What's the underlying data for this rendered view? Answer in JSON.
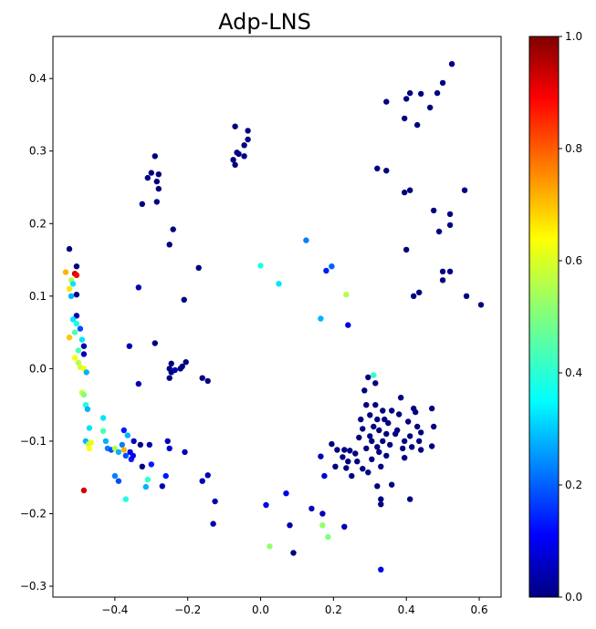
{
  "chart_data": {
    "type": "scatter",
    "title": "Adp-LNS",
    "xlabel": "",
    "ylabel": "",
    "xlim": [
      -0.57,
      0.66
    ],
    "ylim": [
      -0.315,
      0.458
    ],
    "xticks": [
      -0.4,
      -0.2,
      0.0,
      0.2,
      0.4,
      0.6
    ],
    "xtick_labels": [
      "−0.4",
      "−0.2",
      "0.0",
      "0.2",
      "0.4",
      "0.6"
    ],
    "yticks": [
      -0.3,
      -0.2,
      -0.1,
      0.0,
      0.1,
      0.2,
      0.3,
      0.4
    ],
    "ytick_labels": [
      "−0.3",
      "−0.2",
      "−0.1",
      "0.0",
      "0.1",
      "0.2",
      "0.3",
      "0.4"
    ],
    "colormap": "jet",
    "colorbar": {
      "range": [
        0.0,
        1.0
      ],
      "ticks": [
        0.0,
        0.2,
        0.4,
        0.6,
        0.8,
        1.0
      ],
      "tick_labels": [
        "0.0",
        "0.2",
        "0.4",
        "0.6",
        "0.8",
        "1.0"
      ]
    },
    "grid": false,
    "points": [
      [
        -0.51,
        0.131,
        0.92
      ],
      [
        -0.535,
        0.133,
        0.7
      ],
      [
        -0.525,
        0.165,
        0.0
      ],
      [
        -0.505,
        0.141,
        0.0
      ],
      [
        -0.52,
        0.122,
        0.55
      ],
      [
        -0.515,
        0.117,
        0.35
      ],
      [
        -0.525,
        0.11,
        0.65
      ],
      [
        -0.505,
        0.102,
        0.0
      ],
      [
        -0.52,
        0.1,
        0.3
      ],
      [
        -0.505,
        0.073,
        0.05
      ],
      [
        -0.515,
        0.068,
        0.35
      ],
      [
        -0.505,
        0.062,
        0.4
      ],
      [
        -0.495,
        0.055,
        0.2
      ],
      [
        -0.51,
        0.05,
        0.45
      ],
      [
        -0.525,
        0.043,
        0.68
      ],
      [
        -0.49,
        0.04,
        0.35
      ],
      [
        -0.485,
        0.031,
        0.05
      ],
      [
        -0.5,
        0.025,
        0.45
      ],
      [
        -0.485,
        0.02,
        0.05
      ],
      [
        -0.51,
        0.015,
        0.62
      ],
      [
        -0.5,
        0.008,
        0.55
      ],
      [
        -0.495,
        0.002,
        0.58
      ],
      [
        -0.485,
        0.0,
        0.62
      ],
      [
        -0.478,
        -0.005,
        0.3
      ],
      [
        -0.49,
        -0.033,
        0.58
      ],
      [
        -0.485,
        -0.036,
        0.5
      ],
      [
        -0.48,
        -0.05,
        0.4
      ],
      [
        -0.475,
        -0.056,
        0.3
      ],
      [
        -0.47,
        -0.082,
        0.35
      ],
      [
        -0.48,
        -0.1,
        0.3
      ],
      [
        -0.472,
        -0.104,
        0.55
      ],
      [
        -0.47,
        -0.11,
        0.62
      ],
      [
        -0.465,
        -0.102,
        0.6
      ],
      [
        -0.432,
        -0.068,
        0.35
      ],
      [
        -0.432,
        -0.086,
        0.45
      ],
      [
        -0.425,
        -0.1,
        0.3
      ],
      [
        -0.42,
        -0.11,
        0.25
      ],
      [
        -0.41,
        -0.112,
        0.2
      ],
      [
        -0.4,
        -0.11,
        0.55
      ],
      [
        -0.39,
        -0.115,
        0.3
      ],
      [
        -0.38,
        -0.105,
        0.25
      ],
      [
        -0.375,
        -0.112,
        0.7
      ],
      [
        -0.37,
        -0.12,
        0.2
      ],
      [
        -0.365,
        -0.092,
        0.3
      ],
      [
        -0.358,
        -0.115,
        0.1
      ],
      [
        -0.355,
        -0.125,
        0.15
      ],
      [
        -0.35,
        -0.12,
        0.12
      ],
      [
        -0.348,
        -0.1,
        0.05
      ],
      [
        -0.375,
        -0.085,
        0.15
      ],
      [
        -0.4,
        -0.148,
        0.25
      ],
      [
        -0.39,
        -0.155,
        0.2
      ],
      [
        -0.37,
        -0.18,
        0.4
      ],
      [
        -0.33,
        -0.105,
        0.0
      ],
      [
        -0.325,
        -0.135,
        0.0
      ],
      [
        -0.315,
        -0.163,
        0.3
      ],
      [
        -0.31,
        -0.153,
        0.42
      ],
      [
        -0.305,
        -0.105,
        0.05
      ],
      [
        -0.3,
        -0.132,
        0.15
      ],
      [
        -0.27,
        -0.162,
        0.05
      ],
      [
        -0.26,
        -0.148,
        0.15
      ],
      [
        -0.255,
        -0.1,
        0.05
      ],
      [
        -0.25,
        -0.11,
        0.08
      ],
      [
        -0.208,
        -0.115,
        0.05
      ],
      [
        -0.16,
        -0.155,
        0.05
      ],
      [
        -0.145,
        -0.147,
        0.05
      ],
      [
        -0.125,
        -0.183,
        0.05
      ],
      [
        -0.13,
        -0.214,
        0.05
      ],
      [
        -0.36,
        0.031,
        0.05
      ],
      [
        -0.335,
        -0.021,
        0.05
      ],
      [
        -0.335,
        0.112,
        0.05
      ],
      [
        -0.325,
        0.227,
        0.0
      ],
      [
        -0.31,
        0.263,
        0.0
      ],
      [
        -0.3,
        0.27,
        0.0
      ],
      [
        -0.29,
        0.293,
        0.0
      ],
      [
        -0.285,
        0.258,
        0.0
      ],
      [
        -0.28,
        0.268,
        0.0
      ],
      [
        -0.28,
        0.248,
        0.0
      ],
      [
        -0.285,
        0.23,
        0.0
      ],
      [
        -0.25,
        0.171,
        0.0
      ],
      [
        -0.24,
        0.192,
        0.0
      ],
      [
        -0.17,
        0.139,
        0.0
      ],
      [
        -0.21,
        0.095,
        0.0
      ],
      [
        -0.29,
        0.035,
        0.0
      ],
      [
        -0.25,
        0.0,
        0.0
      ],
      [
        -0.245,
        -0.005,
        0.0
      ],
      [
        -0.235,
        -0.002,
        0.05
      ],
      [
        -0.22,
        0.0,
        0.0
      ],
      [
        -0.215,
        0.003,
        0.0
      ],
      [
        -0.205,
        0.009,
        0.0
      ],
      [
        -0.25,
        -0.013,
        0.0
      ],
      [
        -0.245,
        0.007,
        0.0
      ],
      [
        -0.16,
        -0.013,
        0.0
      ],
      [
        -0.145,
        -0.017,
        0.0
      ],
      [
        -0.075,
        0.288,
        0.0
      ],
      [
        -0.07,
        0.281,
        0.0
      ],
      [
        -0.065,
        0.298,
        0.0
      ],
      [
        -0.06,
        0.296,
        0.0
      ],
      [
        -0.07,
        0.334,
        0.0
      ],
      [
        -0.045,
        0.293,
        0.0
      ],
      [
        -0.045,
        0.308,
        0.0
      ],
      [
        -0.035,
        0.316,
        0.0
      ],
      [
        -0.035,
        0.328,
        0.0
      ],
      [
        0.0,
        0.142,
        0.4
      ],
      [
        0.05,
        0.117,
        0.35
      ],
      [
        0.125,
        0.177,
        0.25
      ],
      [
        0.18,
        0.135,
        0.15
      ],
      [
        0.195,
        0.141,
        0.22
      ],
      [
        0.165,
        0.069,
        0.3
      ],
      [
        0.24,
        0.06,
        0.1
      ],
      [
        0.235,
        0.102,
        0.55
      ],
      [
        0.015,
        -0.188,
        0.1
      ],
      [
        0.07,
        -0.172,
        0.1
      ],
      [
        0.08,
        -0.216,
        0.05
      ],
      [
        0.09,
        -0.254,
        0.0
      ],
      [
        0.025,
        -0.245,
        0.52
      ],
      [
        0.14,
        -0.193,
        0.05
      ],
      [
        0.17,
        -0.2,
        0.05
      ],
      [
        0.17,
        -0.216,
        0.52
      ],
      [
        0.185,
        -0.232,
        0.5
      ],
      [
        0.23,
        -0.218,
        0.05
      ],
      [
        0.165,
        -0.121,
        0.05
      ],
      [
        0.175,
        -0.148,
        0.08
      ],
      [
        0.195,
        -0.104,
        0.0
      ],
      [
        0.205,
        -0.135,
        0.0
      ],
      [
        0.21,
        -0.112,
        0.0
      ],
      [
        0.225,
        -0.122,
        0.0
      ],
      [
        0.23,
        -0.112,
        0.0
      ],
      [
        0.235,
        -0.137,
        0.0
      ],
      [
        0.24,
        -0.128,
        0.0
      ],
      [
        0.245,
        -0.113,
        0.0
      ],
      [
        0.25,
        -0.148,
        0.0
      ],
      [
        0.26,
        -0.117,
        0.0
      ],
      [
        0.265,
        -0.128,
        0.0
      ],
      [
        0.27,
        -0.095,
        0.0
      ],
      [
        0.275,
        -0.07,
        0.0
      ],
      [
        0.28,
        -0.083,
        0.0
      ],
      [
        0.28,
        -0.138,
        0.0
      ],
      [
        0.285,
        -0.03,
        0.0
      ],
      [
        0.29,
        -0.05,
        0.0
      ],
      [
        0.29,
        -0.11,
        0.0
      ],
      [
        0.295,
        -0.012,
        0.0
      ],
      [
        0.295,
        -0.143,
        0.0
      ],
      [
        0.3,
        -0.064,
        0.0
      ],
      [
        0.3,
        -0.093,
        0.0
      ],
      [
        0.305,
        -0.1,
        0.0
      ],
      [
        0.305,
        -0.125,
        0.0
      ],
      [
        0.31,
        -0.08,
        0.0
      ],
      [
        0.31,
        -0.009,
        0.42
      ],
      [
        0.315,
        -0.02,
        0.0
      ],
      [
        0.315,
        -0.05,
        0.0
      ],
      [
        0.32,
        -0.108,
        0.0
      ],
      [
        0.32,
        -0.162,
        0.0
      ],
      [
        0.32,
        -0.07,
        0.0
      ],
      [
        0.325,
        -0.115,
        0.0
      ],
      [
        0.325,
        -0.085,
        0.0
      ],
      [
        0.33,
        -0.18,
        0.0
      ],
      [
        0.33,
        -0.135,
        0.0
      ],
      [
        0.335,
        -0.058,
        0.0
      ],
      [
        0.335,
        -0.1,
        0.0
      ],
      [
        0.34,
        -0.07,
        0.0
      ],
      [
        0.345,
        -0.12,
        0.0
      ],
      [
        0.345,
        -0.09,
        0.0
      ],
      [
        0.35,
        -0.075,
        0.0
      ],
      [
        0.355,
        -0.105,
        0.0
      ],
      [
        0.36,
        -0.058,
        0.0
      ],
      [
        0.36,
        -0.16,
        0.0
      ],
      [
        0.37,
        -0.09,
        0.0
      ],
      [
        0.375,
        -0.085,
        0.0
      ],
      [
        0.38,
        -0.063,
        0.0
      ],
      [
        0.385,
        -0.04,
        0.0
      ],
      [
        0.39,
        -0.11,
        0.0
      ],
      [
        0.395,
        -0.123,
        0.0
      ],
      [
        0.395,
        -0.1,
        0.0
      ],
      [
        0.405,
        -0.073,
        0.0
      ],
      [
        0.41,
        -0.093,
        0.0
      ],
      [
        0.415,
        -0.108,
        0.0
      ],
      [
        0.42,
        -0.055,
        0.0
      ],
      [
        0.425,
        -0.06,
        0.0
      ],
      [
        0.43,
        -0.08,
        0.0
      ],
      [
        0.435,
        -0.1,
        0.0
      ],
      [
        0.44,
        -0.088,
        0.0
      ],
      [
        0.44,
        -0.112,
        0.0
      ],
      [
        0.47,
        -0.055,
        0.0
      ],
      [
        0.47,
        -0.107,
        0.0
      ],
      [
        0.475,
        -0.08,
        0.0
      ],
      [
        0.41,
        -0.18,
        0.0
      ],
      [
        0.33,
        -0.277,
        0.1
      ],
      [
        0.33,
        -0.187,
        0.0
      ],
      [
        0.32,
        0.276,
        0.0
      ],
      [
        0.345,
        0.273,
        0.0
      ],
      [
        0.345,
        0.368,
        0.0
      ],
      [
        0.395,
        0.345,
        0.0
      ],
      [
        0.4,
        0.372,
        0.0
      ],
      [
        0.41,
        0.38,
        0.0
      ],
      [
        0.43,
        0.336,
        0.0
      ],
      [
        0.44,
        0.379,
        0.0
      ],
      [
        0.465,
        0.36,
        0.0
      ],
      [
        0.485,
        0.38,
        0.0
      ],
      [
        0.5,
        0.394,
        0.0
      ],
      [
        0.525,
        0.42,
        0.0
      ],
      [
        0.395,
        0.243,
        0.0
      ],
      [
        0.41,
        0.246,
        0.0
      ],
      [
        0.4,
        0.164,
        0.0
      ],
      [
        0.475,
        0.218,
        0.0
      ],
      [
        0.49,
        0.189,
        0.0
      ],
      [
        0.5,
        0.134,
        0.0
      ],
      [
        0.5,
        0.122,
        0.0
      ],
      [
        0.52,
        0.134,
        0.0
      ],
      [
        0.52,
        0.213,
        0.0
      ],
      [
        0.52,
        0.198,
        0.0
      ],
      [
        0.56,
        0.246,
        0.0
      ],
      [
        0.565,
        0.1,
        0.0
      ],
      [
        0.605,
        0.088,
        0.0
      ],
      [
        0.42,
        0.1,
        0.0
      ],
      [
        0.435,
        0.105,
        0.0
      ],
      [
        -0.485,
        -0.168,
        0.92
      ],
      [
        -0.505,
        0.129,
        0.88
      ]
    ]
  }
}
